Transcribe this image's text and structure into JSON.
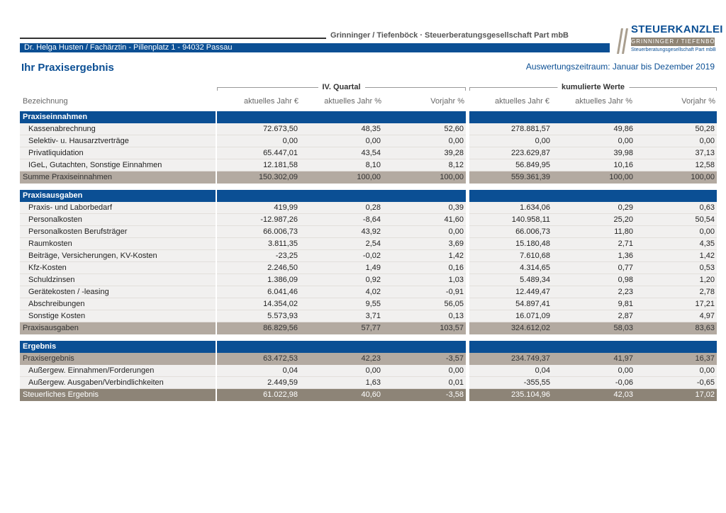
{
  "header": {
    "firm_name": "Grinninger / Tiefenböck · Steuerberatungsgesellschaft Part mbB",
    "client_line": "Dr. Helga Husten / Fachärztin  -  Pillenplatz 1  -  94032 Passau",
    "logo": {
      "brand": "STEUERKANZLEI",
      "sub": "GRINNINGER / TIEFENBÖCK",
      "tagline": "Steuerberatungsgesellschaft Part mbB"
    }
  },
  "title": "Ihr Praxisergebnis",
  "period": "Auswertungszeitraum: Januar bis Dezember 2019",
  "groups": {
    "quarter": "IV. Quartal",
    "cumulative": "kumulierte Werte"
  },
  "columns": [
    "Bezeichnung",
    "aktuelles Jahr €",
    "aktuelles Jahr %",
    "Vorjahr %",
    "aktuelles Jahr €",
    "aktuelles Jahr %",
    "Vorjahr %"
  ],
  "sections": [
    {
      "title": "Praxiseinnahmen",
      "items": [
        {
          "label": "Kassenabrechnung",
          "v": [
            "72.673,50",
            "48,35",
            "52,60",
            "278.881,57",
            "49,86",
            "50,28"
          ]
        },
        {
          "label": "Selektiv- u. Hausarztverträge",
          "v": [
            "0,00",
            "0,00",
            "0,00",
            "0,00",
            "0,00",
            "0,00"
          ]
        },
        {
          "label": "Privatliquidation",
          "v": [
            "65.447,01",
            "43,54",
            "39,28",
            "223.629,87",
            "39,98",
            "37,13"
          ]
        },
        {
          "label": "IGeL, Gutachten, Sonstige Einnahmen",
          "v": [
            "12.181,58",
            "8,10",
            "8,12",
            "56.849,95",
            "10,16",
            "12,58"
          ]
        }
      ],
      "total": {
        "label": "Summe Praxiseinnahmen",
        "v": [
          "150.302,09",
          "100,00",
          "100,00",
          "559.361,39",
          "100,00",
          "100,00"
        ]
      }
    },
    {
      "title": "Praxisausgaben",
      "items": [
        {
          "label": "Praxis- und Laborbedarf",
          "v": [
            "419,99",
            "0,28",
            "0,39",
            "1.634,06",
            "0,29",
            "0,63"
          ]
        },
        {
          "label": "Personalkosten",
          "v": [
            "-12.987,26",
            "-8,64",
            "41,60",
            "140.958,11",
            "25,20",
            "50,54"
          ]
        },
        {
          "label": "Personalkosten Berufsträger",
          "v": [
            "66.006,73",
            "43,92",
            "0,00",
            "66.006,73",
            "11,80",
            "0,00"
          ]
        },
        {
          "label": "Raumkosten",
          "v": [
            "3.811,35",
            "2,54",
            "3,69",
            "15.180,48",
            "2,71",
            "4,35"
          ]
        },
        {
          "label": "Beiträge, Versicherungen, KV-Kosten",
          "v": [
            "-23,25",
            "-0,02",
            "1,42",
            "7.610,68",
            "1,36",
            "1,42"
          ]
        },
        {
          "label": "Kfz-Kosten",
          "v": [
            "2.246,50",
            "1,49",
            "0,16",
            "4.314,65",
            "0,77",
            "0,53"
          ]
        },
        {
          "label": "Schuldzinsen",
          "v": [
            "1.386,09",
            "0,92",
            "1,03",
            "5.489,34",
            "0,98",
            "1,20"
          ]
        },
        {
          "label": "Gerätekosten / -leasing",
          "v": [
            "6.041,46",
            "4,02",
            "-0,91",
            "12.449,47",
            "2,23",
            "2,78"
          ]
        },
        {
          "label": "Abschreibungen",
          "v": [
            "14.354,02",
            "9,55",
            "56,05",
            "54.897,41",
            "9,81",
            "17,21"
          ]
        },
        {
          "label": "Sonstige Kosten",
          "v": [
            "5.573,93",
            "3,71",
            "0,13",
            "16.071,09",
            "2,87",
            "4,97"
          ]
        }
      ],
      "total": {
        "label": "Praxisausgaben",
        "v": [
          "86.829,56",
          "57,77",
          "103,57",
          "324.612,02",
          "58,03",
          "83,63"
        ]
      }
    },
    {
      "title": "Ergebnis",
      "subtotal": {
        "label": "Praxisergebnis",
        "v": [
          "63.472,53",
          "42,23",
          "-3,57",
          "234.749,37",
          "41,97",
          "16,37"
        ]
      },
      "items": [
        {
          "label": "Außergew. Einnahmen/Forderungen",
          "v": [
            "0,04",
            "0,00",
            "0,00",
            "0,04",
            "0,00",
            "0,00"
          ]
        },
        {
          "label": "Außergew. Ausgaben/Verbindlichkeiten",
          "v": [
            "2.449,59",
            "1,63",
            "0,01",
            "-355,55",
            "-0,06",
            "-0,65"
          ]
        }
      ],
      "final": {
        "label": "Steuerliches Ergebnis",
        "v": [
          "61.022,98",
          "40,60",
          "-3,58",
          "235.104,96",
          "42,03",
          "17,02"
        ]
      }
    }
  ]
}
